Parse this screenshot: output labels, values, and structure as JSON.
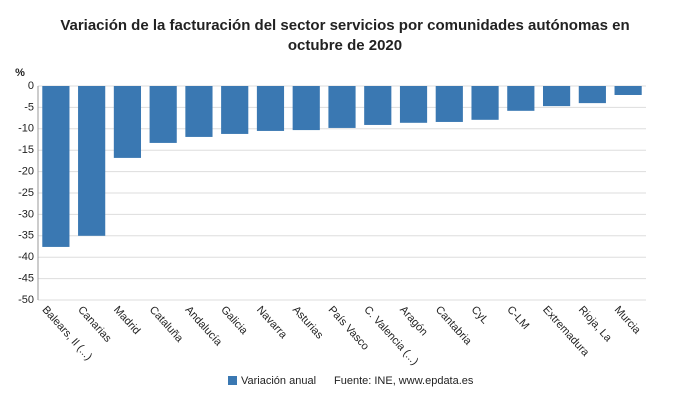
{
  "chart_data": {
    "type": "bar",
    "title": [
      "Variación de la facturación del sector servicios por comunidades autónomas en",
      "octubre de 2020"
    ],
    "y_unit": "%",
    "categories": [
      "Balears, Il (...)",
      "Canarias",
      "Madrid",
      "Cataluña",
      "Andalucía",
      "Galicia",
      "Navarra",
      "Asturias",
      "País Vasco",
      "C. Valencia (...)",
      "Aragón",
      "Cantabria",
      "CyL",
      "C-LM",
      "Extremadura",
      "Rioja, La",
      "Murcia"
    ],
    "series": [
      {
        "name": "Variación anual",
        "color": "#3a78b2",
        "values": [
          -37.6,
          -35.0,
          -16.8,
          -13.3,
          -11.9,
          -11.2,
          -10.5,
          -10.3,
          -9.8,
          -9.1,
          -8.6,
          -8.4,
          -7.9,
          -5.8,
          -4.7,
          -4.0,
          -2.1
        ]
      }
    ],
    "ylim": [
      -50,
      0
    ],
    "yticks": [
      0,
      -5,
      -10,
      -15,
      -20,
      -25,
      -30,
      -35,
      -40,
      -45,
      -50
    ],
    "grid": true,
    "source": "Fuente: INE, www.epdata.es"
  }
}
